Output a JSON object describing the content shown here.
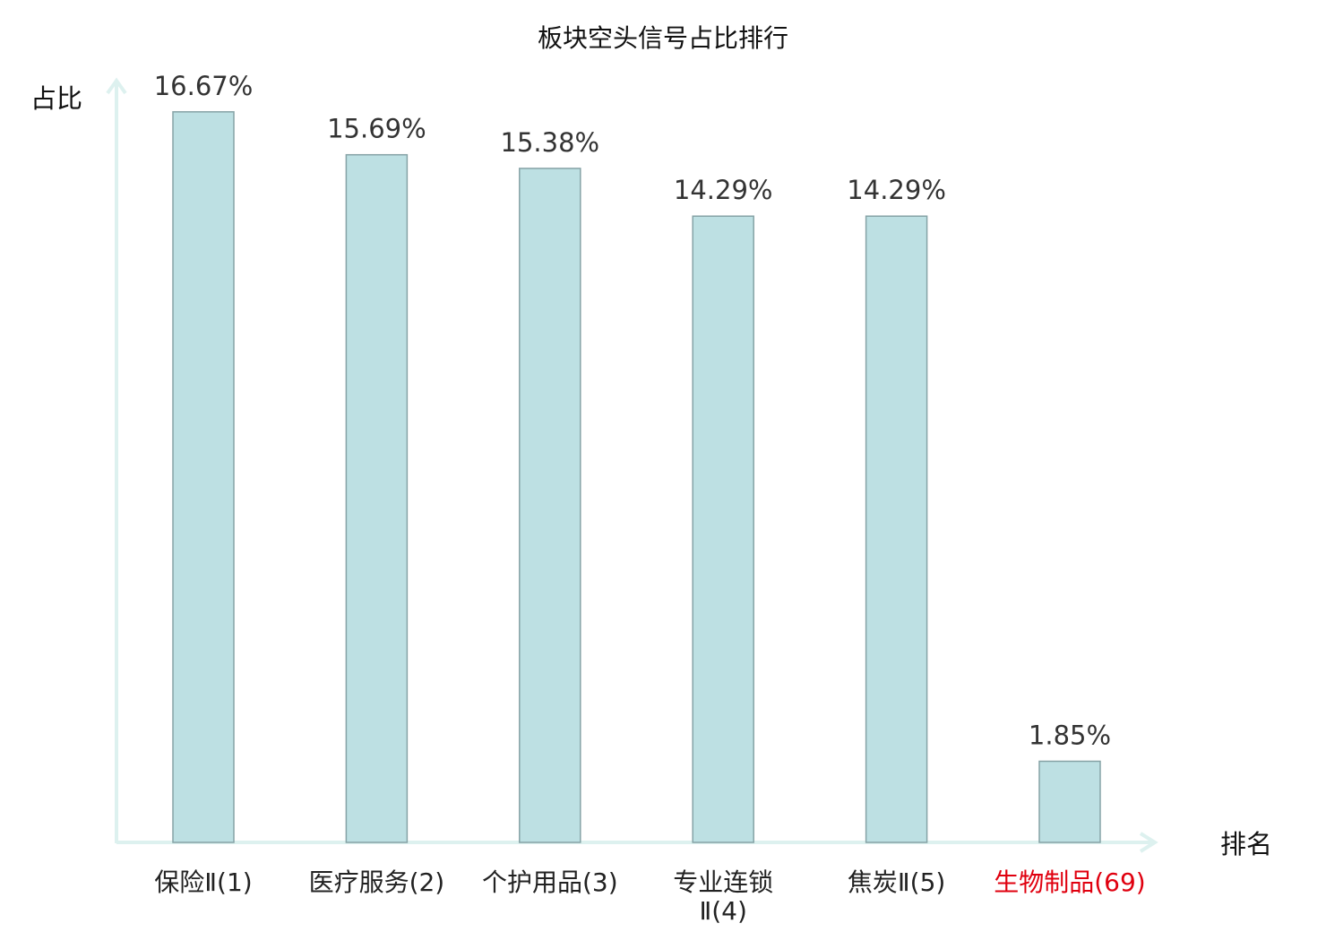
{
  "chart_data": {
    "type": "bar",
    "title": "板块空头信号占比排行",
    "ylabel": "占比",
    "xlabel": "排名",
    "categories": [
      "保险Ⅱ(1)",
      "医疗服务(2)",
      "个护用品(3)",
      "专业连锁Ⅱ(4)",
      "焦炭Ⅱ(5)",
      "生物制品(69)"
    ],
    "category_lines": [
      [
        "保险Ⅱ(1)"
      ],
      [
        "医疗服务(2)"
      ],
      [
        "个护用品(3)"
      ],
      [
        "专业连锁",
        "Ⅱ(4)"
      ],
      [
        "焦炭Ⅱ(5)"
      ],
      [
        "生物制品(69)"
      ]
    ],
    "values": [
      16.67,
      15.69,
      15.38,
      14.29,
      14.29,
      1.85
    ],
    "value_labels": [
      "16.67%",
      "15.69%",
      "15.38%",
      "14.29%",
      "14.29%",
      "1.85%"
    ],
    "highlight_index": 5,
    "ylim": [
      0,
      17.3
    ],
    "grid": false,
    "colors": {
      "bar_fill": "#bde0e3",
      "bar_stroke": "#86a3a6",
      "axis": "#ddf1ef",
      "highlight_label": "#e0000f"
    }
  }
}
